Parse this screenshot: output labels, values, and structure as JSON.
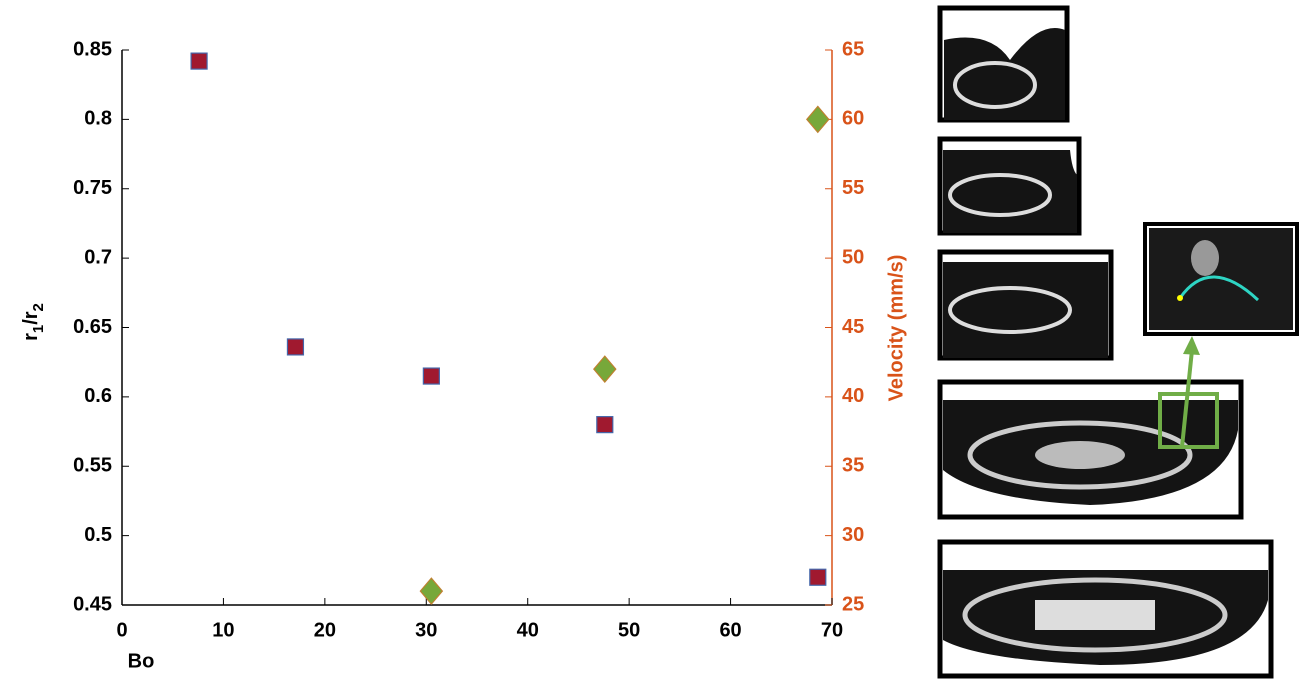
{
  "chart_data": {
    "type": "scatter",
    "xlabel": "Bo",
    "ylabel": [
      "r",
      "1",
      "/r",
      "2"
    ],
    "y2label": "Velocity (mm/s)",
    "y2color": "#d95319",
    "xlim": [
      0,
      70
    ],
    "xticks": [
      0,
      10,
      20,
      30,
      40,
      50,
      60,
      70
    ],
    "ylim": [
      0.45,
      0.85
    ],
    "yticks": [
      0.45,
      0.5,
      0.55,
      0.6,
      0.65,
      0.7,
      0.75,
      0.8,
      0.85
    ],
    "y2lim": [
      25,
      65
    ],
    "y2ticks": [
      25,
      30,
      35,
      40,
      45,
      50,
      55,
      60,
      65
    ],
    "series": [
      {
        "marker": "square",
        "color": "#a0192f",
        "x": [
          7.6,
          17.1,
          30.5,
          47.6,
          68.6
        ],
        "values": [
          0.842,
          0.636,
          0.615,
          0.58,
          0.47
        ]
      },
      {
        "marker": "diamond",
        "color": "#77a83a",
        "axis": "y2",
        "x": [
          30.5,
          47.6,
          68.6
        ],
        "values": [
          26,
          42,
          60
        ]
      }
    ]
  }
}
